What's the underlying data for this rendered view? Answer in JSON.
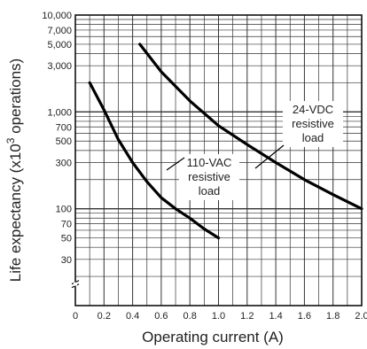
{
  "chart_data": {
    "type": "line",
    "title": "",
    "xlabel": "Operating current (A)",
    "ylabel_main": "Life expectancy (x10",
    "ylabel_sup": "3",
    "ylabel_tail": " operations)",
    "xlim": [
      0,
      2.0
    ],
    "ylim": [
      10,
      10000
    ],
    "yscale": "log",
    "grid": true,
    "x_ticks": [
      "0",
      "0.2",
      "0.4",
      "0.6",
      "0.8",
      "1.0",
      "1.2",
      "1.4",
      "1.6",
      "1.8",
      "2.0"
    ],
    "y_ticks": [
      "10,000",
      "7,000",
      "5,000",
      "3,000",
      "1,000",
      "700",
      "500",
      "300",
      "100",
      "70",
      "50",
      "30"
    ],
    "series": [
      {
        "name": "110-VAC resistive load",
        "x": [
          0.1,
          0.2,
          0.3,
          0.4,
          0.5,
          0.6,
          0.7,
          0.8,
          0.9,
          1.0
        ],
        "y": [
          2000,
          1050,
          520,
          300,
          190,
          130,
          100,
          80,
          62,
          50
        ]
      },
      {
        "name": "24-VDC resistive load",
        "x": [
          0.45,
          0.6,
          0.8,
          1.0,
          1.2,
          1.4,
          1.6,
          1.8,
          2.0
        ],
        "y": [
          5000,
          2600,
          1300,
          720,
          460,
          300,
          200,
          140,
          100
        ]
      }
    ],
    "annotations": [
      {
        "lines": [
          "24-VDC",
          "resistive",
          "load"
        ]
      },
      {
        "lines": [
          "110-VAC",
          "resistive",
          "load"
        ]
      }
    ]
  }
}
